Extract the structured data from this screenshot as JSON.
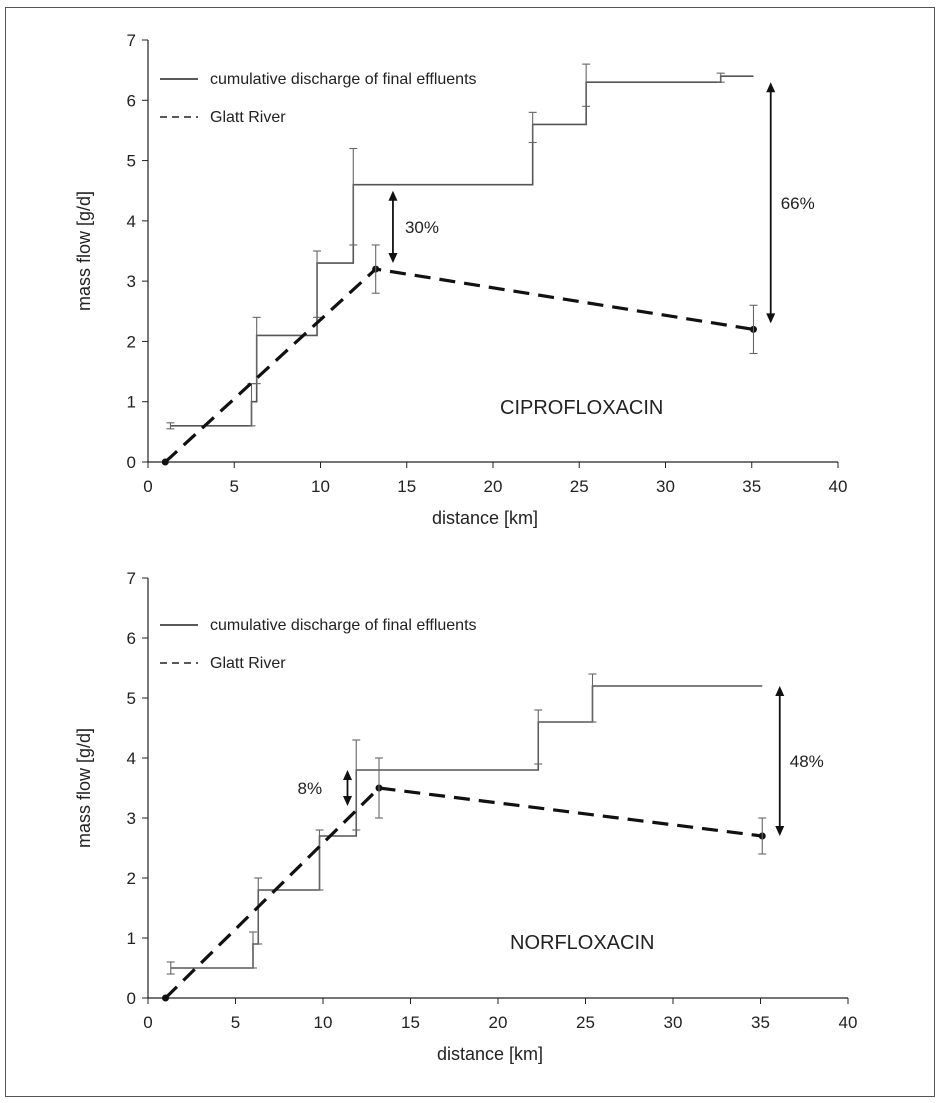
{
  "chart_data": [
    {
      "type": "line",
      "compound_label": "CIPROFLOXACIN",
      "xlabel": "distance [km]",
      "ylabel": "mass flow [g/d]",
      "xlim": [
        0,
        40
      ],
      "ylim": [
        0,
        7
      ],
      "xticks": [
        "0",
        "5",
        "10",
        "15",
        "20",
        "25",
        "30",
        "35",
        "40"
      ],
      "yticks": [
        "0",
        "1",
        "2",
        "3",
        "4",
        "5",
        "6",
        "7"
      ],
      "legend": {
        "placement": "top-left",
        "items": [
          {
            "name": "cumulative discharge of final effluents",
            "style": "solid"
          },
          {
            "name": "Glatt River",
            "style": "dashed"
          }
        ]
      },
      "series": [
        {
          "name": "cumulative discharge of final effluents",
          "style": "step",
          "x": [
            1.3,
            6.0,
            6.3,
            9.8,
            11.9,
            22.3,
            25.4,
            33.2,
            35.1
          ],
          "y": [
            0.6,
            1.0,
            2.1,
            3.3,
            4.6,
            5.6,
            6.3,
            6.4,
            6.4
          ],
          "err": [
            {
              "x": 1.3,
              "lo": 0.55,
              "hi": 0.65
            },
            {
              "x": 6.0,
              "lo": 0.6,
              "hi": 1.3
            },
            {
              "x": 6.3,
              "lo": 1.3,
              "hi": 2.4
            },
            {
              "x": 9.8,
              "lo": 2.4,
              "hi": 3.5
            },
            {
              "x": 11.9,
              "lo": 3.6,
              "hi": 5.2
            },
            {
              "x": 22.3,
              "lo": 5.3,
              "hi": 5.8
            },
            {
              "x": 25.4,
              "lo": 5.9,
              "hi": 6.6
            },
            {
              "x": 33.2,
              "lo": 6.3,
              "hi": 6.45
            }
          ]
        },
        {
          "name": "Glatt River",
          "style": "dashed",
          "x": [
            1.0,
            13.2,
            35.1
          ],
          "y": [
            0.0,
            3.2,
            2.2
          ],
          "err": [
            {
              "x": 13.2,
              "lo": 2.8,
              "hi": 3.6
            },
            {
              "x": 35.1,
              "lo": 1.8,
              "hi": 2.6
            }
          ]
        }
      ],
      "annotations": [
        {
          "text": "30%",
          "x": 14.2,
          "y_from": 3.3,
          "y_to": 4.5
        },
        {
          "text": "66%",
          "x": 36.1,
          "y_from": 2.3,
          "y_to": 6.3
        }
      ]
    },
    {
      "type": "line",
      "compound_label": "NORFLOXACIN",
      "xlabel": "distance [km]",
      "ylabel": "mass flow [g/d]",
      "xlim": [
        0,
        40
      ],
      "ylim": [
        0,
        7
      ],
      "xticks": [
        "0",
        "5",
        "10",
        "15",
        "20",
        "25",
        "30",
        "35",
        "40"
      ],
      "yticks": [
        "0",
        "1",
        "2",
        "3",
        "4",
        "5",
        "6",
        "7"
      ],
      "legend": {
        "placement": "top-left",
        "items": [
          {
            "name": "cumulative discharge of final effluents",
            "style": "solid"
          },
          {
            "name": "Glatt  River",
            "style": "dashed"
          }
        ]
      },
      "series": [
        {
          "name": "cumulative discharge of final effluents",
          "style": "step",
          "x": [
            1.3,
            6.0,
            6.3,
            9.8,
            11.9,
            22.3,
            25.4,
            33.2,
            35.1
          ],
          "y": [
            0.5,
            0.9,
            1.8,
            2.7,
            3.8,
            4.6,
            5.2,
            5.2,
            5.2
          ],
          "err": [
            {
              "x": 1.3,
              "lo": 0.4,
              "hi": 0.6
            },
            {
              "x": 6.0,
              "lo": 0.5,
              "hi": 1.1
            },
            {
              "x": 6.3,
              "lo": 0.9,
              "hi": 2.0
            },
            {
              "x": 9.8,
              "lo": 1.8,
              "hi": 2.8
            },
            {
              "x": 11.9,
              "lo": 2.8,
              "hi": 4.3
            },
            {
              "x": 22.3,
              "lo": 3.9,
              "hi": 4.8
            },
            {
              "x": 25.4,
              "lo": 4.6,
              "hi": 5.4
            }
          ]
        },
        {
          "name": "Glatt  River",
          "style": "dashed",
          "x": [
            1.0,
            13.2,
            35.1
          ],
          "y": [
            0.0,
            3.5,
            2.7
          ],
          "err": [
            {
              "x": 13.2,
              "lo": 3.0,
              "hi": 4.0
            },
            {
              "x": 35.1,
              "lo": 2.4,
              "hi": 3.0
            }
          ]
        }
      ],
      "annotations": [
        {
          "text": "8%",
          "x": 11.4,
          "y_from": 3.2,
          "y_to": 3.8
        },
        {
          "text": "48%",
          "x": 36.1,
          "y_from": 2.7,
          "y_to": 5.2
        }
      ]
    }
  ]
}
